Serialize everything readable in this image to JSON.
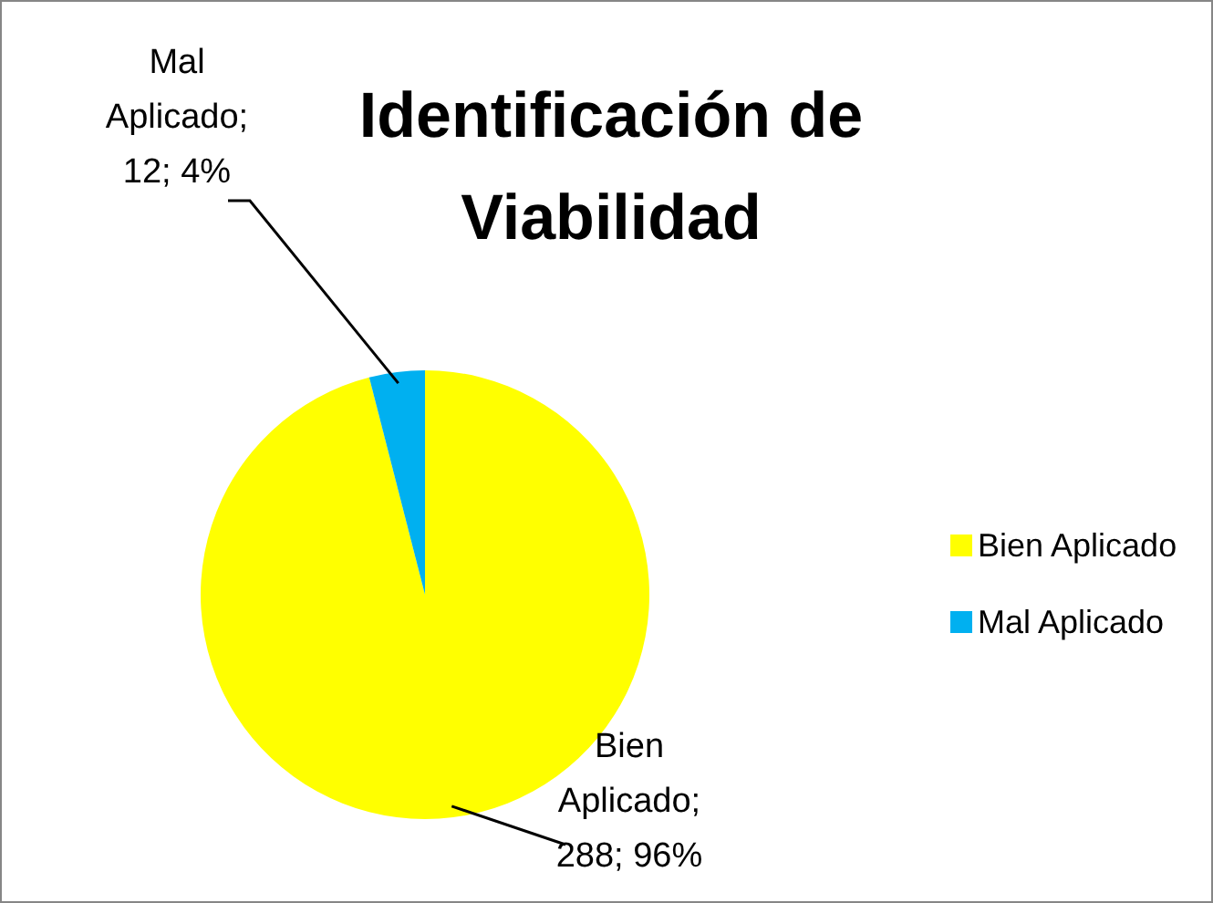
{
  "chart_data": {
    "type": "pie",
    "title": "Identificación de Viabilidad",
    "categories": [
      "Bien Aplicado",
      "Mal Aplicado"
    ],
    "values": [
      288,
      12
    ],
    "colors": [
      "#ffff00",
      "#00b0f0"
    ],
    "value_labels": [
      "Bien Aplicado; 288; 96%",
      "Mal Aplicado; 12; 4%"
    ],
    "legend": "right"
  }
}
